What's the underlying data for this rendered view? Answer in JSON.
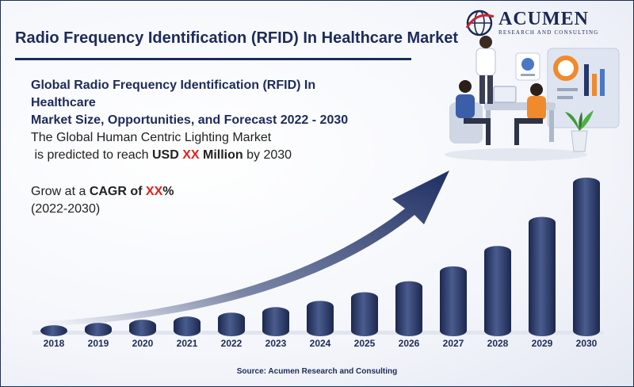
{
  "brand": {
    "name": "ACUMEN",
    "tagline": "RESEARCH AND CONSULTING",
    "color": "#1b2756",
    "accent": "#c9252c"
  },
  "header": {
    "title": "Radio Frequency Identification (RFID) In Healthcare Market"
  },
  "summary": {
    "subtitle_line1": "Global Radio Frequency Identification (RFID) In Healthcare",
    "subtitle_line2": "Market Size, Opportunities, and Forecast 2022 - 2030",
    "forecast_line1": "The Global Human Centric Lighting Market",
    "forecast_prefix": " is predicted to reach ",
    "forecast_currency": "USD ",
    "forecast_value": "XX",
    "forecast_unit": " Million",
    "forecast_suffix": " by 2030",
    "cagr_prefix": "Grow at a ",
    "cagr_label": "CAGR of ",
    "cagr_value": "XX",
    "cagr_percent": "%",
    "cagr_period": "(2022-2030)"
  },
  "source": "Source: Acumen Research and Consulting",
  "chart_data": {
    "type": "bar",
    "categories": [
      "2018",
      "2019",
      "2020",
      "2021",
      "2022",
      "2023",
      "2024",
      "2025",
      "2026",
      "2027",
      "2028",
      "2029",
      "2030"
    ],
    "values": [
      7,
      10,
      14,
      18,
      23,
      30,
      38,
      49,
      63,
      82,
      108,
      145,
      195
    ],
    "ylim": [
      0,
      200
    ],
    "bar_color": "#2f3f6c",
    "arrow_color": "#26386b",
    "grid": false,
    "legend": "none"
  }
}
